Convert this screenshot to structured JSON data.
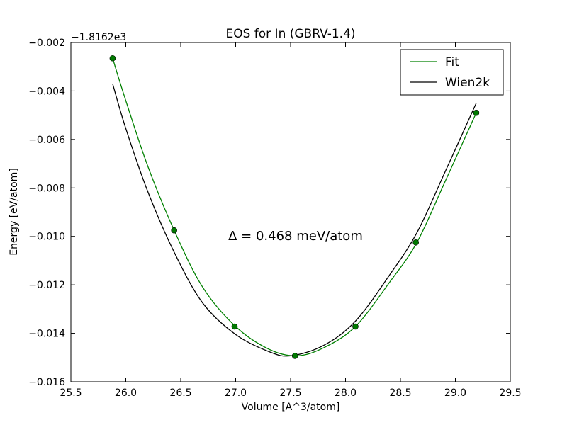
{
  "chart_data": {
    "type": "line",
    "title": "EOS for In (GBRV-1.4)",
    "xlabel": "Volume [A^3/atom]",
    "ylabel": "Energy [eV/atom]",
    "offset_text": "−1.8162e3",
    "xlim": [
      25.5,
      29.5
    ],
    "ylim": [
      -0.016,
      -0.002
    ],
    "x_ticks": [
      25.5,
      26.0,
      26.5,
      27.0,
      27.5,
      28.0,
      28.5,
      29.0,
      29.5
    ],
    "x_tick_labels": [
      "25.5",
      "26.0",
      "26.5",
      "27.0",
      "27.5",
      "28.0",
      "28.5",
      "29.0",
      "29.5"
    ],
    "y_ticks": [
      -0.016,
      -0.014,
      -0.012,
      -0.01,
      -0.008,
      -0.006,
      -0.004,
      -0.002
    ],
    "y_tick_labels": [
      "−0.016",
      "−0.014",
      "−0.012",
      "−0.010",
      "−0.008",
      "−0.006",
      "−0.004",
      "−0.002"
    ],
    "grid": false,
    "legend_position": "top-right",
    "annotation": "Δ = 0.468 meV/atom",
    "series": [
      {
        "name": "Fit",
        "color": "#008000",
        "kind": "line",
        "x": [
          25.88,
          26.0,
          26.2,
          26.44,
          26.7,
          27.0,
          27.3,
          27.55,
          27.8,
          28.09,
          28.4,
          28.65,
          28.9,
          29.19
        ],
        "y": [
          -0.00265,
          -0.0044,
          -0.0071,
          -0.00975,
          -0.0121,
          -0.01372,
          -0.01465,
          -0.01493,
          -0.0146,
          -0.01372,
          -0.0119,
          -0.01025,
          -0.0078,
          -0.0049
        ]
      },
      {
        "name": "Wien2k",
        "color": "#000000",
        "kind": "line",
        "x": [
          25.88,
          26.0,
          26.2,
          26.44,
          26.7,
          27.0,
          27.3,
          27.5,
          27.8,
          28.09,
          28.4,
          28.65,
          28.9,
          29.19
        ],
        "y": [
          -0.0037,
          -0.00555,
          -0.00815,
          -0.01065,
          -0.01275,
          -0.01405,
          -0.01475,
          -0.01493,
          -0.0145,
          -0.0135,
          -0.0116,
          -0.00985,
          -0.0074,
          -0.0045
        ]
      },
      {
        "name": "",
        "color": "#007a00",
        "kind": "points",
        "x": [
          25.88,
          26.44,
          26.99,
          27.54,
          28.09,
          28.64,
          29.19
        ],
        "y": [
          -0.00265,
          -0.00975,
          -0.01372,
          -0.01493,
          -0.01372,
          -0.01025,
          -0.0049
        ]
      }
    ]
  }
}
